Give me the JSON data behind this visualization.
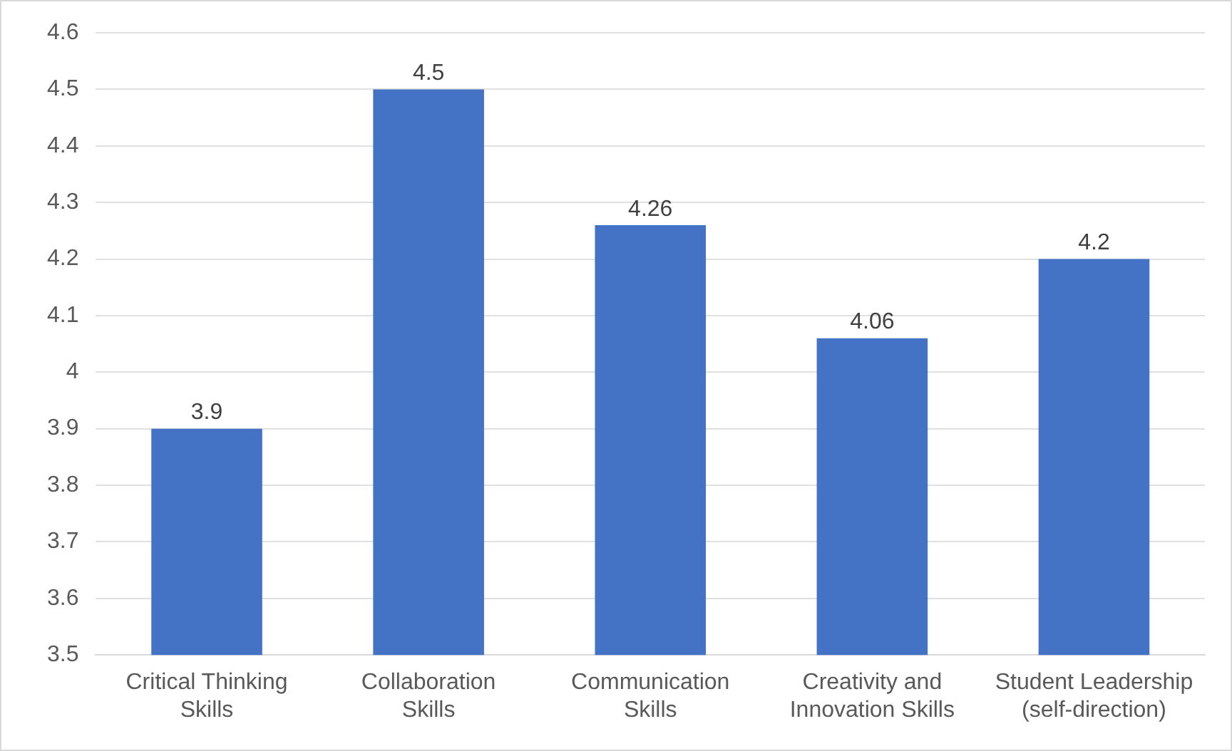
{
  "chart_data": {
    "type": "bar",
    "categories": [
      "Critical Thinking Skills",
      "Collaboration Skills",
      "Communication Skills",
      "Creativity and Innovation Skills",
      "Student Leadership (self-direction)"
    ],
    "values": [
      3.9,
      4.5,
      4.26,
      4.06,
      4.2
    ],
    "color": "#4472c4",
    "ylim": [
      3.5,
      4.6
    ],
    "yticks": [
      3.5,
      3.6,
      3.7,
      3.8,
      3.9,
      4,
      4.1,
      4.2,
      4.3,
      4.4,
      4.5,
      4.6
    ],
    "grid": "y",
    "data_labels": true
  }
}
